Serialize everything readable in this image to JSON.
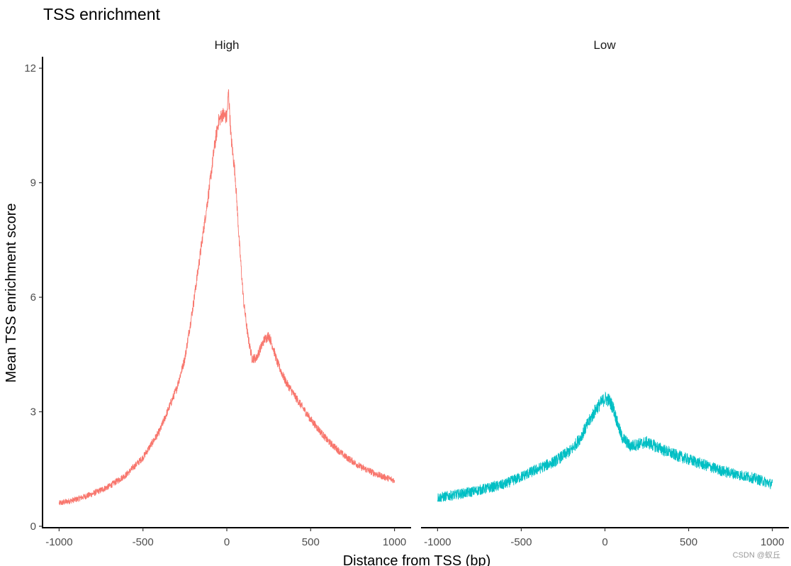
{
  "chart_data": {
    "type": "line",
    "title": "TSS enrichment",
    "xlabel": "Distance from TSS (bp)",
    "ylabel": "Mean TSS enrichment score",
    "xlim": [
      -1050,
      1050
    ],
    "ylim": [
      0,
      12.3
    ],
    "xticks": [
      -1000,
      -500,
      0,
      500,
      1000
    ],
    "xtick_labels": [
      "-1000",
      "-500",
      "0",
      "500",
      "1000"
    ],
    "yticks": [
      0,
      3,
      6,
      9,
      12
    ],
    "ytick_labels": [
      "0",
      "3",
      "6",
      "9",
      "12"
    ],
    "grid": false,
    "legend": "none",
    "facets": [
      {
        "strip_label": "High",
        "color": "#F8766D",
        "noise": 0.12,
        "x": [
          -1000,
          -900,
          -800,
          -700,
          -600,
          -500,
          -400,
          -300,
          -250,
          -200,
          -150,
          -100,
          -75,
          -50,
          -25,
          0,
          10,
          25,
          50,
          75,
          100,
          125,
          150,
          175,
          200,
          225,
          250,
          275,
          300,
          350,
          400,
          500,
          600,
          700,
          800,
          900,
          1000
        ],
        "values": [
          0.6,
          0.7,
          0.85,
          1.05,
          1.35,
          1.8,
          2.5,
          3.6,
          4.4,
          5.8,
          7.4,
          9.0,
          9.9,
          10.6,
          10.8,
          10.7,
          11.4,
          10.2,
          9.2,
          7.4,
          5.9,
          5.0,
          4.4,
          4.4,
          4.65,
          4.9,
          5.0,
          4.7,
          4.3,
          3.8,
          3.45,
          2.8,
          2.25,
          1.85,
          1.55,
          1.35,
          1.2
        ]
      },
      {
        "strip_label": "Low",
        "color": "#00BFC4",
        "noise": 0.2,
        "x": [
          -1000,
          -900,
          -800,
          -700,
          -600,
          -500,
          -400,
          -300,
          -200,
          -150,
          -100,
          -50,
          0,
          25,
          50,
          75,
          100,
          150,
          200,
          250,
          300,
          400,
          500,
          600,
          700,
          800,
          900,
          1000
        ],
        "values": [
          0.75,
          0.82,
          0.9,
          1.0,
          1.1,
          1.3,
          1.5,
          1.7,
          2.0,
          2.3,
          2.7,
          3.1,
          3.35,
          3.3,
          3.1,
          2.7,
          2.35,
          2.1,
          2.15,
          2.2,
          2.1,
          1.9,
          1.75,
          1.6,
          1.45,
          1.35,
          1.25,
          1.1
        ]
      }
    ]
  },
  "watermark": "CSDN @蚁丘"
}
